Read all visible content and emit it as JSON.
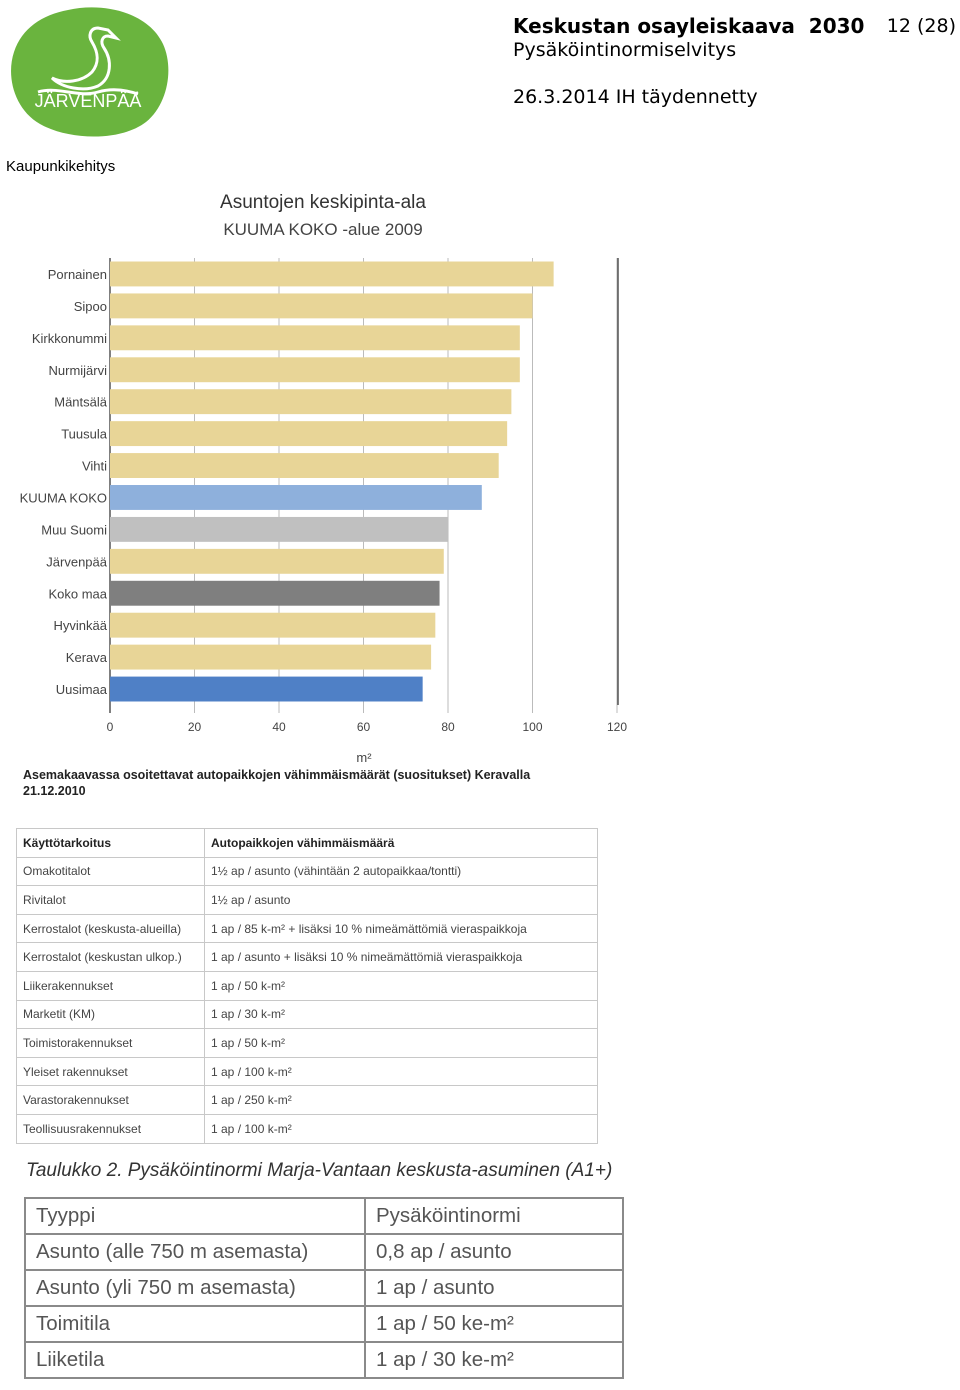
{
  "header": {
    "logo_text": "JÄRVENPÄÄ",
    "title": "Keskustan osayleiskaava  2030",
    "page_number": "12 (28)",
    "subtitle": "Pysäköintinormiselvitys",
    "date": "26.3.2014 IH täydennetty",
    "department": "Kaupunkikehitys"
  },
  "colors": {
    "logo_green": "#6ab43e",
    "bar_default": "#e8d597",
    "bar_kuuma": "#8eb0dc",
    "bar_muu_suomi": "#c0c0c0",
    "bar_koko_maa": "#7f7f7f",
    "bar_uusimaa": "#4f80c6"
  },
  "chart_data": {
    "type": "bar",
    "orientation": "horizontal",
    "title": "Asuntojen keskipinta-ala",
    "subtitle": "KUUMA KOKO -alue 2009",
    "xlabel": "m²",
    "ylabel": "",
    "xlim": [
      0,
      120
    ],
    "xticks": [
      "0",
      "20",
      "40",
      "60",
      "80",
      "100",
      "120"
    ],
    "grid": "vertical",
    "legend": "none",
    "categories": [
      "Pornainen",
      "Sipoo",
      "Kirkkonummi",
      "Nurmijärvi",
      "Mäntsälä",
      "Tuusula",
      "Vihti",
      "KUUMA KOKO",
      "Muu Suomi",
      "Järvenpää",
      "Koko maa",
      "Hyvinkää",
      "Kerava",
      "Uusimaa"
    ],
    "values": [
      105,
      100,
      97,
      97,
      95,
      94,
      92,
      88,
      80,
      79,
      78,
      77,
      76,
      74
    ],
    "bar_colors": [
      "#e8d597",
      "#e8d597",
      "#e8d597",
      "#e8d597",
      "#e8d597",
      "#e8d597",
      "#e8d597",
      "#8eb0dc",
      "#c0c0c0",
      "#e8d597",
      "#7f7f7f",
      "#e8d597",
      "#e8d597",
      "#4f80c6"
    ]
  },
  "kerava": {
    "title": "Asemakaavassa osoitettavat autopaikkojen vähimmäismäärät (suositukset) Keravalla 21.12.2010",
    "headers": [
      "Käyttötarkoitus",
      "Autopaikkojen vähimmäismäärä"
    ],
    "rows": [
      [
        "Omakotitalot",
        "1½ ap / asunto (vähintään 2 autopaikkaa/tontti)"
      ],
      [
        "Rivitalot",
        "1½ ap / asunto"
      ],
      [
        "Kerrostalot (keskusta-alueilla)",
        "1 ap / 85 k-m² + lisäksi 10 % nimeämättömiä vieraspaikkoja"
      ],
      [
        "Kerrostalot (keskustan ulkop.)",
        "1 ap / asunto + lisäksi 10 % nimeämättömiä vieraspaikkoja"
      ],
      [
        "Liikerakennukset",
        "1 ap / 50 k-m²"
      ],
      [
        "Marketit (KM)",
        "1 ap / 30 k-m²"
      ],
      [
        "Toimistorakennukset",
        "1 ap / 50 k-m²"
      ],
      [
        "Yleiset rakennukset",
        "1 ap / 100 k-m²"
      ],
      [
        "Varastorakennukset",
        "1 ap / 250 k-m²"
      ],
      [
        "Teollisuusrakennukset",
        "1 ap / 100 k-m²"
      ]
    ]
  },
  "marjavantaa": {
    "title": "Taulukko 2. Pysäköintinormi Marja-Vantaan keskusta-asuminen (A1+)",
    "rows": [
      [
        "Tyyppi",
        "Pysäköintinormi"
      ],
      [
        "Asunto (alle 750 m asemasta)",
        "0,8 ap / asunto"
      ],
      [
        "Asunto (yli 750 m asemasta)",
        "1 ap / asunto"
      ],
      [
        "Toimitila",
        "1 ap / 50 ke-m²"
      ],
      [
        "Liiketila",
        "1 ap / 30 ke-m²"
      ]
    ]
  }
}
